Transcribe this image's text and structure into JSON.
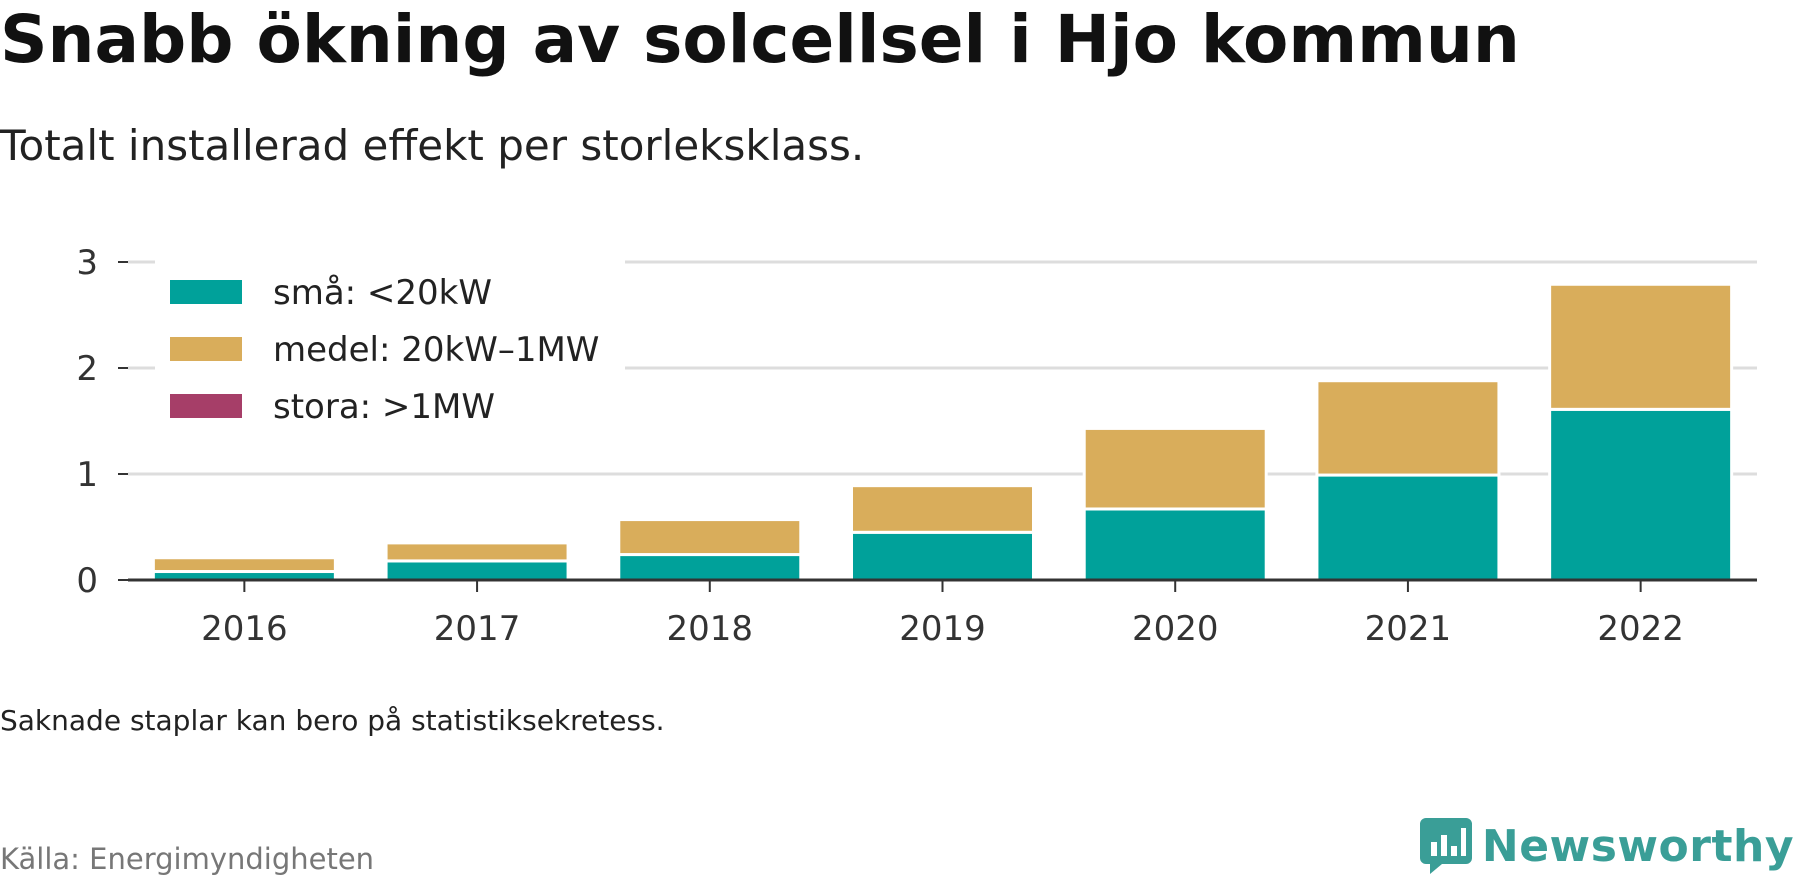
{
  "chart_data": {
    "type": "bar",
    "stacked": true,
    "title": "Snabb ökning av solcellsel i Hjo kommun",
    "subtitle": "Totalt installerad effekt per storleksklass.",
    "xlabel": "",
    "ylabel": "",
    "categories": [
      "2016",
      "2017",
      "2018",
      "2019",
      "2020",
      "2021",
      "2022"
    ],
    "series": [
      {
        "name": "små: <20kW",
        "color": "#00a19a",
        "values": [
          0.08,
          0.18,
          0.24,
          0.45,
          0.67,
          0.99,
          1.61
        ]
      },
      {
        "name": "medel: 20kW–1MW",
        "color": "#d9ad5b",
        "values": [
          0.13,
          0.17,
          0.33,
          0.44,
          0.76,
          0.89,
          1.18
        ]
      },
      {
        "name": "stora: >1MW",
        "color": "#a63e68",
        "values": [
          0,
          0,
          0,
          0,
          0,
          0,
          0
        ]
      }
    ],
    "ylim": [
      0,
      3
    ],
    "yticks": [
      0,
      1,
      2,
      3
    ],
    "grid": true,
    "legend_position": "top-left"
  },
  "footer": {
    "note": "Saknade staplar kan bero på statistiksekretess.",
    "source": "Källa: Energimyndigheten",
    "brand": "Newsworthy"
  },
  "colors": {
    "gridline": "#dddddd",
    "axis": "#333333",
    "brand": "#3a9e97",
    "source_text": "#777777"
  },
  "icons": {
    "brand_logo": "chat-bubble-bar-chart-icon"
  }
}
